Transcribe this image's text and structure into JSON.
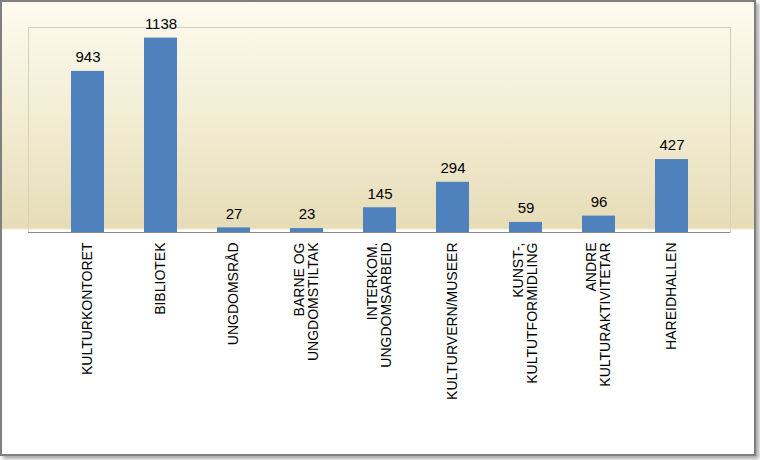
{
  "chart_data": {
    "type": "bar",
    "categories": [
      "KULTURKONTORET",
      "BIBLIOTEK",
      "UNGDOMSRÅD",
      "BARNE OG\nUNGDOMSTILTAK",
      "INTERKOM.\nUNGDOMSARBEID",
      "KULTURVERN/MUSEER",
      "KUNST-,\nKULTUTFORMIDLING",
      "ANDRE\nKULTURAKTIVITETAR",
      "HAREIDHALLEN"
    ],
    "values": [
      943,
      1138,
      27,
      23,
      145,
      294,
      59,
      96,
      427
    ],
    "color": "#4f81bd",
    "ylim": [
      0,
      1200
    ],
    "grid": false,
    "data_labels": true,
    "tick_labels": "x"
  }
}
